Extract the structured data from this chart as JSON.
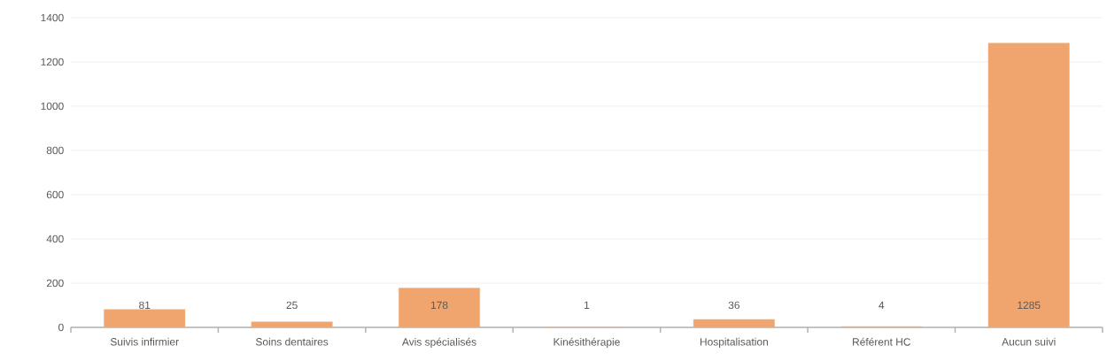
{
  "chart_data": {
    "type": "bar",
    "categories": [
      "Suivis infirmier",
      "Soins dentaires",
      "Avis spécialisés",
      "Kinésithérapie",
      "Hospitalisation",
      "Référent HC",
      "Aucun suivi"
    ],
    "values": [
      81,
      25,
      178,
      1,
      36,
      4,
      1285
    ],
    "color": "#f0a56e",
    "ylim": [
      0,
      1400
    ],
    "yticks": [
      0,
      200,
      400,
      600,
      800,
      1000,
      1200,
      1400
    ],
    "grid": "y",
    "data_labels": true
  }
}
